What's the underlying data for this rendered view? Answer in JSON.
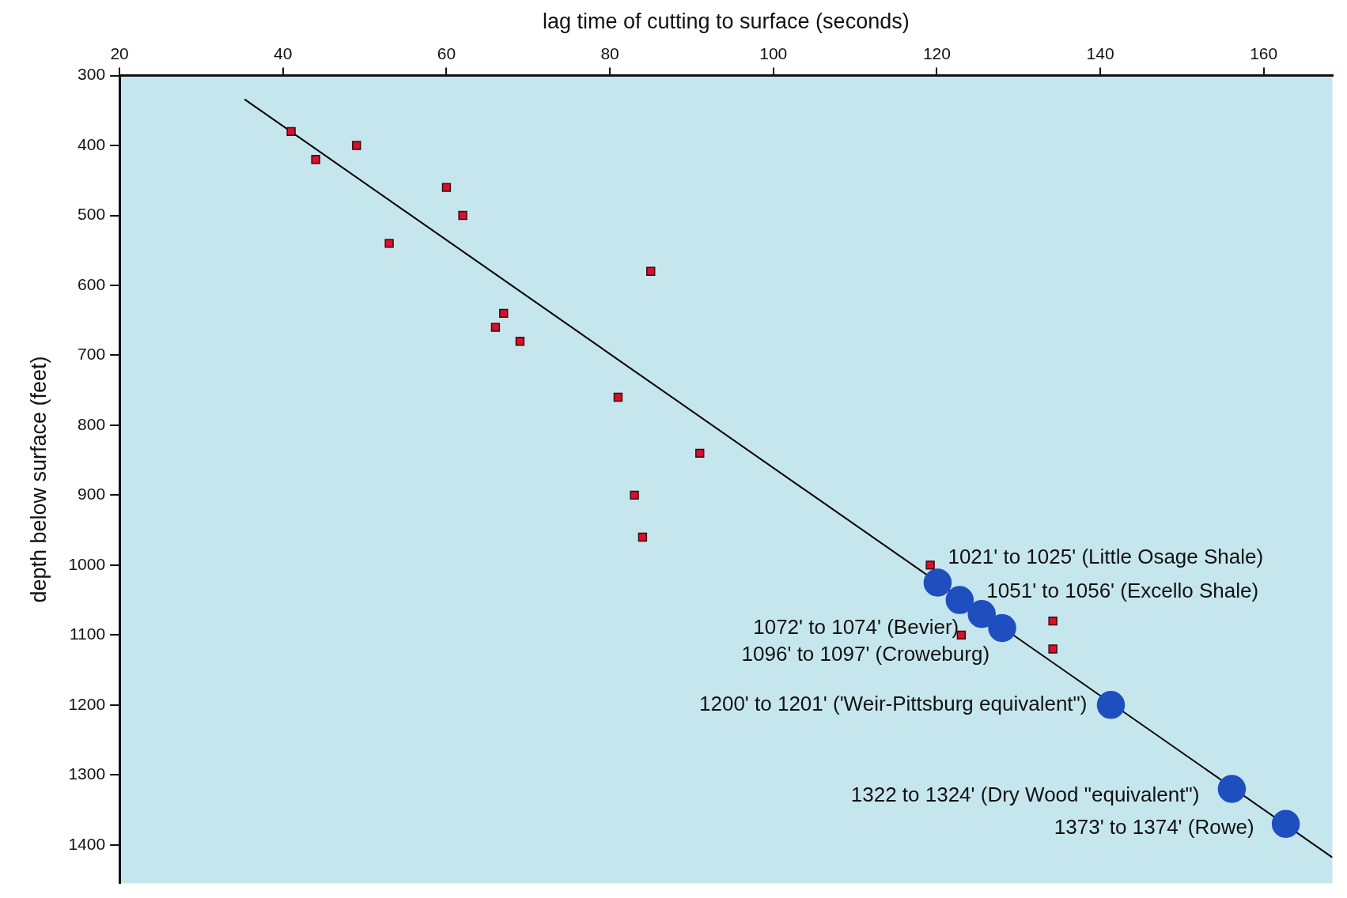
{
  "chart_data": {
    "type": "scatter",
    "xlabel": "lag time of cutting to surface (seconds)",
    "ylabel": "depth below surface (feet)",
    "xlim": [
      20,
      168.4
    ],
    "xticks": [
      20,
      40,
      60,
      80,
      100,
      120,
      140,
      160
    ],
    "ylim": [
      1455,
      300
    ],
    "yticks": [
      300,
      400,
      500,
      600,
      700,
      800,
      900,
      1000,
      1100,
      1200,
      1300,
      1400
    ],
    "grid": false,
    "legend": false,
    "series": [
      {
        "marker": "square",
        "color": "#d8102c",
        "x": [
          41,
          44,
          49,
          60,
          62,
          53,
          85,
          67,
          66,
          69,
          81,
          91,
          83,
          84,
          119.2,
          123,
          134.2,
          134.2
        ],
        "values": [
          380,
          420,
          400,
          460,
          500,
          540,
          580,
          640,
          660,
          680,
          760,
          840,
          900,
          960,
          1000,
          1100,
          1080,
          1120
        ]
      },
      {
        "marker": "circle",
        "color": "#1f4fbf",
        "x": [
          120.1,
          122.8,
          125.5,
          128,
          141.3,
          156.1,
          162.7
        ],
        "values": [
          1025,
          1050,
          1070,
          1090,
          1200,
          1320,
          1370
        ]
      },
      {
        "type": "line",
        "marker": "none",
        "color": "#000000",
        "x": [
          35.3,
          168.4
        ],
        "values": [
          334,
          1418
        ]
      }
    ],
    "annotations": [
      {
        "text": "1021' to 1025' (Little Osage Shale)",
        "x": 120.1,
        "y": 1025
      },
      {
        "text": "1051' to 1056' (Excello Shale)",
        "x": 122.8,
        "y": 1050
      },
      {
        "text": "1072' to 1074' (Bevier)",
        "x": 125.5,
        "y": 1070
      },
      {
        "text": "1096' to 1097' (Croweburg)",
        "x": 128,
        "y": 1090
      },
      {
        "text": "1200' to 1201' ('Weir-Pittsburg equivalent\")",
        "x": 141.3,
        "y": 1200
      },
      {
        "text": "1322 to 1324' (Dry Wood \"equivalent\")",
        "x": 156.1,
        "y": 1320
      },
      {
        "text": "1373' to 1374' (Rowe)",
        "x": 162.7,
        "y": 1370
      }
    ]
  }
}
